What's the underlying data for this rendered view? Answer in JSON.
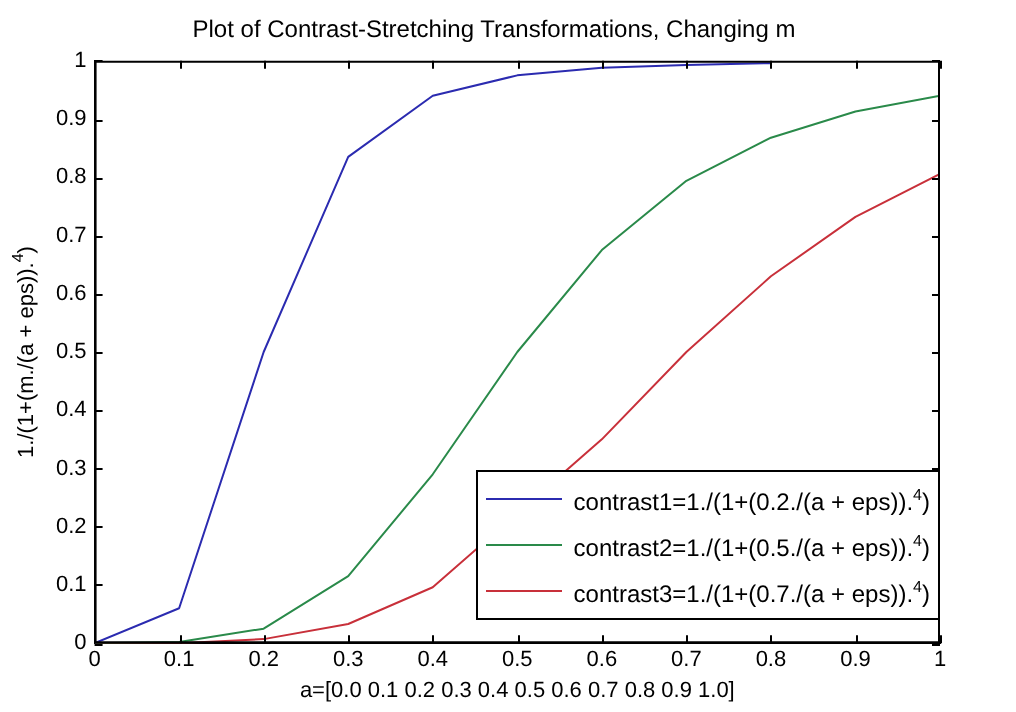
{
  "chart_data": {
    "type": "line",
    "title": "Plot of Contrast-Stretching Transformations, Changing m",
    "xlabel": "a=[0.0 0.1 0.2 0.3 0.4 0.5 0.6 0.7 0.8 0.9 1.0]",
    "ylabel": "1./(1+(m./(a + eps)).$^{4}$)",
    "x": [
      0,
      0.1,
      0.2,
      0.3,
      0.4,
      0.5,
      0.6,
      0.7,
      0.8,
      0.9,
      1
    ],
    "series": [
      {
        "name": "contrast1=1./(1+(0.2./(a + eps)).$^{4}$)",
        "color": "#2b2bb0",
        "values": [
          0,
          0.06,
          0.5,
          0.835,
          0.94,
          0.975,
          0.988,
          0.993,
          0.996,
          null,
          null
        ]
      },
      {
        "name": "contrast2=1./(1+(0.5./(a + eps)).$^{4}$)",
        "color": "#2a8a4a",
        "values": [
          0,
          0.002,
          0.025,
          0.115,
          0.29,
          0.5,
          0.675,
          0.794,
          0.868,
          0.913,
          0.94
        ]
      },
      {
        "name": "contrast3=1./(1+(0.7./(a + eps)).$^{4}$)",
        "color": "#c8303a",
        "values": [
          0,
          0,
          0.007,
          0.033,
          0.096,
          null,
          0.35,
          0.5,
          0.63,
          0.732,
          0.806
        ]
      }
    ],
    "xlim": [
      0,
      1
    ],
    "xticks": [
      0,
      0.1,
      0.2,
      0.3,
      0.4,
      0.5,
      0.6,
      0.7,
      0.8,
      0.9,
      1
    ],
    "ylim": [
      0,
      1
    ],
    "yticks": [
      0,
      0.1,
      0.2,
      0.3,
      0.4,
      0.5,
      0.6,
      0.7,
      0.8,
      0.9,
      1
    ],
    "legend": "bottom right",
    "grid": false,
    "marker": "none",
    "line_style": "solid"
  }
}
